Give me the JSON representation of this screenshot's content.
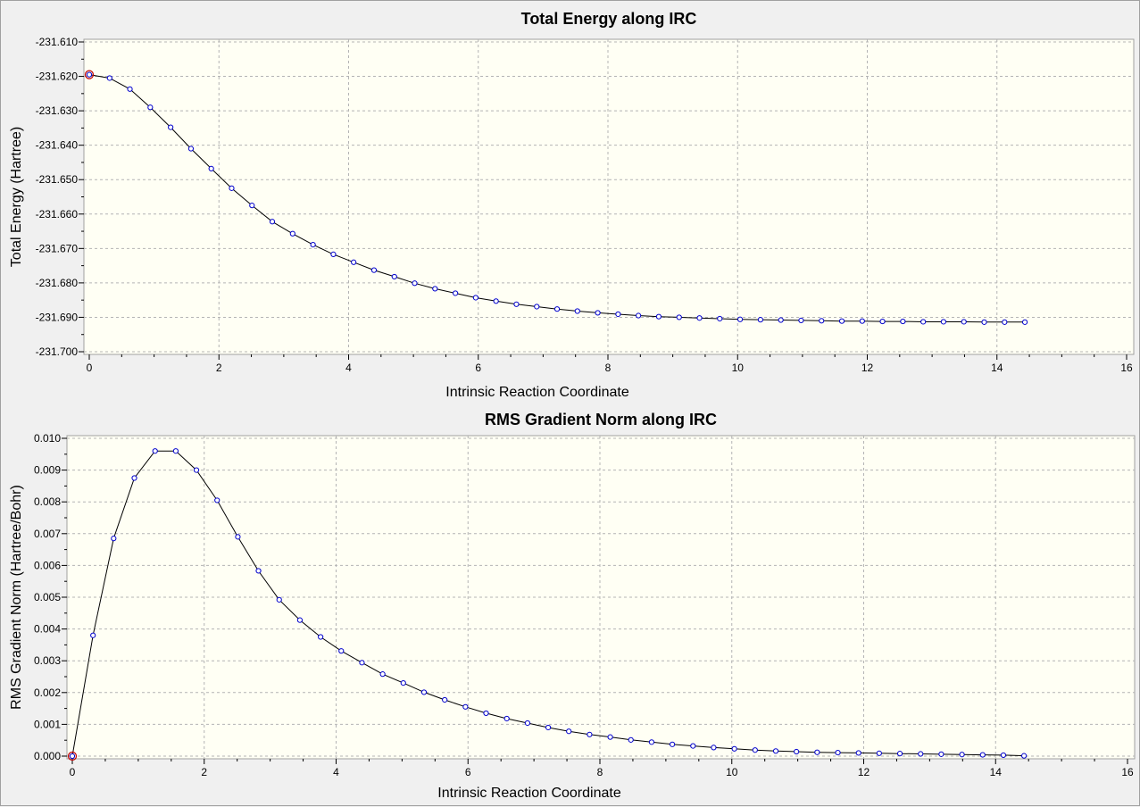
{
  "chart_data": [
    {
      "type": "line",
      "title": "Total Energy along IRC",
      "xlabel": "Intrinsic Reaction Coordinate",
      "ylabel": "Total Energy (Hartree)",
      "xlim": [
        0,
        16
      ],
      "ylim": [
        -231.7,
        -231.61
      ],
      "xticks": [
        "0",
        "2",
        "4",
        "6",
        "8",
        "10",
        "12",
        "14",
        "16"
      ],
      "yticks": [
        "-231.610",
        "-231.620",
        "-231.630",
        "-231.640",
        "-231.650",
        "-231.660",
        "-231.670",
        "-231.680",
        "-231.690",
        "-231.700"
      ],
      "grid": true,
      "background": "#fffff4",
      "line_color": "#000000",
      "marker_color": "#0000cc",
      "highlight_color": "#c00000",
      "highlight_index": 0,
      "series": [
        {
          "x": [
            0,
            0.314,
            0.627,
            0.941,
            1.255,
            1.569,
            1.882,
            2.196,
            2.51,
            2.823,
            3.137,
            3.451,
            3.765,
            4.078,
            4.392,
            4.706,
            5.019,
            5.333,
            5.647,
            5.961,
            6.274,
            6.588,
            6.902,
            7.216,
            7.529,
            7.843,
            8.157,
            8.47,
            8.784,
            9.098,
            9.412,
            9.725,
            10.039,
            10.353,
            10.667,
            10.98,
            11.294,
            11.608,
            11.922,
            12.235,
            12.549,
            12.863,
            13.176,
            13.49,
            13.804,
            14.118,
            14.431
          ],
          "y": [
            -231.6195,
            -231.6205,
            -231.6237,
            -231.629,
            -231.6348,
            -231.641,
            -231.6468,
            -231.6525,
            -231.6575,
            -231.6622,
            -231.6657,
            -231.6689,
            -231.6717,
            -231.674,
            -231.6763,
            -231.6782,
            -231.6801,
            -231.6817,
            -231.683,
            -231.6843,
            -231.6853,
            -231.6862,
            -231.6869,
            -231.6876,
            -231.6882,
            -231.6887,
            -231.6891,
            -231.6895,
            -231.6898,
            -231.69,
            -231.6902,
            -231.6904,
            -231.6906,
            -231.6907,
            -231.6908,
            -231.6909,
            -231.691,
            -231.6911,
            -231.6911,
            -231.6912,
            -231.6912,
            -231.6913,
            -231.6913,
            -231.6913,
            -231.6914,
            -231.6914,
            -231.6914
          ]
        }
      ]
    },
    {
      "type": "line",
      "title": "RMS Gradient Norm along IRC",
      "xlabel": "Intrinsic Reaction Coordinate",
      "ylabel": "RMS Gradient Norm (Hartree/Bohr)",
      "xlim": [
        0,
        16
      ],
      "ylim": [
        0,
        0.01
      ],
      "xticks": [
        "0",
        "2",
        "4",
        "6",
        "8",
        "10",
        "12",
        "14",
        "16"
      ],
      "yticks": [
        "0.000",
        "0.001",
        "0.002",
        "0.003",
        "0.004",
        "0.005",
        "0.006",
        "0.007",
        "0.008",
        "0.009",
        "0.010"
      ],
      "grid": true,
      "background": "#fffff4",
      "line_color": "#000000",
      "marker_color": "#0000cc",
      "highlight_color": "#c00000",
      "highlight_index": 0,
      "series": [
        {
          "x": [
            0,
            0.314,
            0.627,
            0.941,
            1.255,
            1.569,
            1.882,
            2.196,
            2.51,
            2.823,
            3.137,
            3.451,
            3.765,
            4.078,
            4.392,
            4.706,
            5.019,
            5.333,
            5.647,
            5.961,
            6.274,
            6.588,
            6.902,
            7.216,
            7.529,
            7.843,
            8.157,
            8.47,
            8.784,
            9.098,
            9.412,
            9.725,
            10.039,
            10.353,
            10.667,
            10.98,
            11.294,
            11.608,
            11.922,
            12.235,
            12.549,
            12.863,
            13.176,
            13.49,
            13.804,
            14.118,
            14.431
          ],
          "y": [
            0.0,
            0.0038,
            0.00685,
            0.00875,
            0.0096,
            0.0096,
            0.009,
            0.00805,
            0.0069,
            0.00583,
            0.00492,
            0.00428,
            0.00375,
            0.00331,
            0.00294,
            0.00258,
            0.0023,
            0.00201,
            0.00177,
            0.00155,
            0.00135,
            0.00118,
            0.00104,
            0.0009,
            0.00078,
            0.00068,
            0.0006,
            0.00051,
            0.00044,
            0.00037,
            0.00032,
            0.00027,
            0.00023,
            0.00019,
            0.00016,
            0.00014,
            0.00012,
            0.00011,
            0.0001,
            9e-05,
            8e-05,
            7e-05,
            6e-05,
            5e-05,
            4e-05,
            3e-05,
            1e-05
          ]
        }
      ]
    }
  ]
}
